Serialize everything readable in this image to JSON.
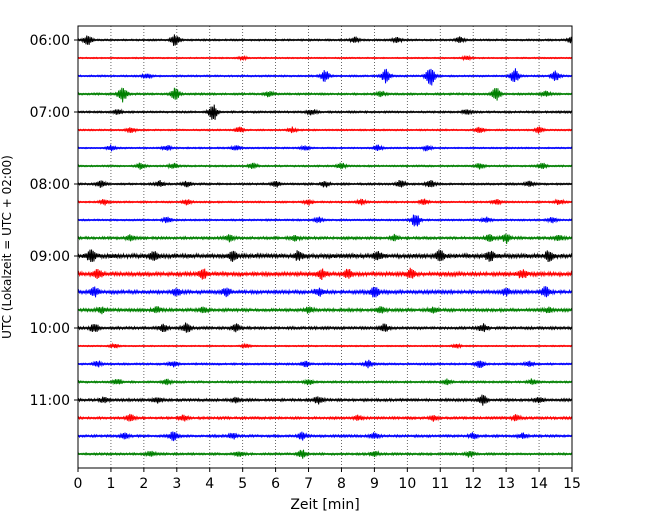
{
  "chart_data": {
    "type": "line",
    "title": "",
    "xlabel": "Zeit  [min]",
    "ylabel": "UTC (Lokalzeit = UTC + 02:00)",
    "xlim": [
      0,
      15
    ],
    "x_ticks": [
      "0",
      "1",
      "2",
      "3",
      "4",
      "5",
      "6",
      "7",
      "8",
      "9",
      "10",
      "11",
      "12",
      "13",
      "14",
      "15"
    ],
    "y_ticks": [
      {
        "label": "06:00",
        "row": 0
      },
      {
        "label": "07:00",
        "row": 4
      },
      {
        "label": "08:00",
        "row": 8
      },
      {
        "label": "09:00",
        "row": 12
      },
      {
        "label": "10:00",
        "row": 16
      },
      {
        "label": "11:00",
        "row": 20
      }
    ],
    "grid": "vertical dotted at each minute",
    "legend": "none",
    "trace_colors": [
      "#000000",
      "#ff0000",
      "#0000ff",
      "#008000"
    ],
    "rows": [
      {
        "start": "06:00",
        "color": "#000000",
        "amp": 0.8,
        "noise": 0.8,
        "bursts": [
          [
            0.3,
            5
          ],
          [
            2.95,
            6
          ],
          [
            8.4,
            3
          ],
          [
            9.7,
            3
          ],
          [
            11.6,
            3
          ],
          [
            15.0,
            4
          ]
        ]
      },
      {
        "start": "06:15",
        "color": "#ff0000",
        "amp": 0.6,
        "noise": 0.6,
        "bursts": [
          [
            5.0,
            2
          ],
          [
            11.8,
            2
          ]
        ]
      },
      {
        "start": "06:30",
        "color": "#0000ff",
        "amp": 0.8,
        "noise": 0.8,
        "bursts": [
          [
            2.1,
            3
          ],
          [
            7.5,
            6
          ],
          [
            9.35,
            7
          ],
          [
            10.7,
            12
          ],
          [
            13.25,
            8
          ],
          [
            14.5,
            6
          ]
        ]
      },
      {
        "start": "06:45",
        "color": "#008000",
        "amp": 0.9,
        "noise": 0.9,
        "bursts": [
          [
            1.35,
            9
          ],
          [
            2.95,
            6
          ],
          [
            5.8,
            3
          ],
          [
            9.2,
            3
          ],
          [
            12.7,
            7
          ],
          [
            14.2,
            3
          ]
        ]
      },
      {
        "start": "07:00",
        "color": "#000000",
        "amp": 0.9,
        "noise": 0.9,
        "bursts": [
          [
            1.2,
            3
          ],
          [
            4.1,
            9
          ],
          [
            7.1,
            3
          ],
          [
            11.8,
            3
          ]
        ]
      },
      {
        "start": "07:15",
        "color": "#ff0000",
        "amp": 0.7,
        "noise": 0.7,
        "bursts": [
          [
            1.6,
            3
          ],
          [
            4.9,
            3
          ],
          [
            6.5,
            3
          ],
          [
            12.2,
            3
          ],
          [
            14.0,
            3
          ]
        ]
      },
      {
        "start": "07:30",
        "color": "#0000ff",
        "amp": 0.7,
        "noise": 0.7,
        "bursts": [
          [
            1.0,
            3
          ],
          [
            2.7,
            3
          ],
          [
            4.8,
            3
          ],
          [
            6.9,
            3
          ],
          [
            9.1,
            3
          ],
          [
            10.6,
            3
          ]
        ]
      },
      {
        "start": "07:45",
        "color": "#008000",
        "amp": 0.8,
        "noise": 0.8,
        "bursts": [
          [
            1.9,
            3
          ],
          [
            2.9,
            3
          ],
          [
            5.3,
            3
          ],
          [
            8.0,
            3
          ],
          [
            12.2,
            3
          ],
          [
            14.1,
            3
          ]
        ]
      },
      {
        "start": "08:00",
        "color": "#000000",
        "amp": 0.9,
        "noise": 0.9,
        "bursts": [
          [
            0.7,
            4
          ],
          [
            2.5,
            3
          ],
          [
            3.3,
            3
          ],
          [
            6.0,
            3
          ],
          [
            7.5,
            3
          ],
          [
            9.8,
            4
          ],
          [
            10.7,
            4
          ],
          [
            13.7,
            3
          ]
        ]
      },
      {
        "start": "08:15",
        "color": "#ff0000",
        "amp": 0.8,
        "noise": 0.8,
        "bursts": [
          [
            0.8,
            3
          ],
          [
            3.3,
            3
          ],
          [
            7.0,
            3
          ],
          [
            8.6,
            3
          ],
          [
            10.5,
            3
          ],
          [
            12.7,
            3
          ],
          [
            14.6,
            3
          ]
        ]
      },
      {
        "start": "08:30",
        "color": "#0000ff",
        "amp": 0.8,
        "noise": 0.8,
        "bursts": [
          [
            2.7,
            3
          ],
          [
            7.3,
            3
          ],
          [
            10.25,
            8
          ],
          [
            12.4,
            3
          ],
          [
            14.4,
            3
          ]
        ]
      },
      {
        "start": "08:45",
        "color": "#008000",
        "amp": 1.2,
        "noise": 1.2,
        "bursts": [
          [
            1.6,
            3
          ],
          [
            4.6,
            4
          ],
          [
            6.6,
            3
          ],
          [
            9.6,
            3
          ],
          [
            12.5,
            4
          ],
          [
            13.0,
            5
          ],
          [
            14.6,
            3
          ]
        ]
      },
      {
        "start": "09:00",
        "color": "#000000",
        "amp": 2.0,
        "noise": 2.0,
        "bursts": [
          [
            0.4,
            6
          ],
          [
            2.3,
            5
          ],
          [
            4.7,
            5
          ],
          [
            6.7,
            5
          ],
          [
            9.1,
            4
          ],
          [
            11.0,
            6
          ],
          [
            12.5,
            5
          ],
          [
            14.3,
            5
          ]
        ]
      },
      {
        "start": "09:15",
        "color": "#ff0000",
        "amp": 1.8,
        "noise": 1.8,
        "bursts": [
          [
            0.6,
            5
          ],
          [
            3.8,
            5
          ],
          [
            7.4,
            5
          ],
          [
            8.2,
            4
          ],
          [
            10.1,
            5
          ],
          [
            13.5,
            5
          ]
        ]
      },
      {
        "start": "09:30",
        "color": "#0000ff",
        "amp": 1.6,
        "noise": 1.6,
        "bursts": [
          [
            0.5,
            5
          ],
          [
            3.0,
            4
          ],
          [
            4.5,
            4
          ],
          [
            7.3,
            4
          ],
          [
            9.0,
            5
          ],
          [
            13.0,
            4
          ],
          [
            14.2,
            5
          ]
        ]
      },
      {
        "start": "09:45",
        "color": "#008000",
        "amp": 1.4,
        "noise": 1.4,
        "bursts": [
          [
            0.7,
            3
          ],
          [
            2.4,
            3
          ],
          [
            3.8,
            3
          ],
          [
            7.0,
            3
          ],
          [
            9.2,
            3
          ],
          [
            10.8,
            3
          ],
          [
            14.3,
            3
          ]
        ]
      },
      {
        "start": "10:00",
        "color": "#000000",
        "amp": 1.6,
        "noise": 1.2,
        "bursts": [
          [
            0.5,
            5
          ],
          [
            2.6,
            4
          ],
          [
            3.3,
            5
          ],
          [
            4.8,
            4
          ],
          [
            9.3,
            4
          ],
          [
            12.3,
            4
          ]
        ]
      },
      {
        "start": "10:15",
        "color": "#ff0000",
        "amp": 0.6,
        "noise": 0.6,
        "bursts": [
          [
            1.1,
            2
          ],
          [
            5.1,
            2
          ],
          [
            11.5,
            2
          ]
        ]
      },
      {
        "start": "10:30",
        "color": "#0000ff",
        "amp": 0.9,
        "noise": 0.9,
        "bursts": [
          [
            0.6,
            3
          ],
          [
            2.9,
            3
          ],
          [
            6.9,
            3
          ],
          [
            8.8,
            4
          ],
          [
            12.2,
            4
          ],
          [
            13.7,
            3
          ]
        ]
      },
      {
        "start": "10:45",
        "color": "#008000",
        "amp": 0.9,
        "noise": 0.9,
        "bursts": [
          [
            1.2,
            3
          ],
          [
            2.7,
            3
          ],
          [
            7.0,
            3
          ],
          [
            11.2,
            3
          ],
          [
            13.8,
            3
          ]
        ]
      },
      {
        "start": "11:00",
        "color": "#000000",
        "amp": 1.2,
        "noise": 1.2,
        "bursts": [
          [
            0.8,
            3
          ],
          [
            2.4,
            3
          ],
          [
            4.8,
            3
          ],
          [
            7.3,
            4
          ],
          [
            12.3,
            5
          ],
          [
            14.0,
            3
          ]
        ]
      },
      {
        "start": "11:15",
        "color": "#ff0000",
        "amp": 1.1,
        "noise": 1.1,
        "bursts": [
          [
            1.6,
            4
          ],
          [
            3.2,
            3
          ],
          [
            8.5,
            3
          ],
          [
            10.8,
            3
          ],
          [
            13.3,
            3
          ]
        ]
      },
      {
        "start": "11:30",
        "color": "#0000ff",
        "amp": 1.1,
        "noise": 1.1,
        "bursts": [
          [
            1.4,
            3
          ],
          [
            2.9,
            5
          ],
          [
            4.7,
            3
          ],
          [
            6.8,
            4
          ],
          [
            9.0,
            3
          ],
          [
            12.0,
            3
          ],
          [
            13.5,
            3
          ]
        ]
      },
      {
        "start": "11:45",
        "color": "#008000",
        "amp": 1.0,
        "noise": 1.0,
        "bursts": [
          [
            2.2,
            3
          ],
          [
            4.9,
            3
          ],
          [
            6.8,
            4
          ],
          [
            9.0,
            3
          ],
          [
            11.9,
            3
          ]
        ]
      }
    ]
  }
}
